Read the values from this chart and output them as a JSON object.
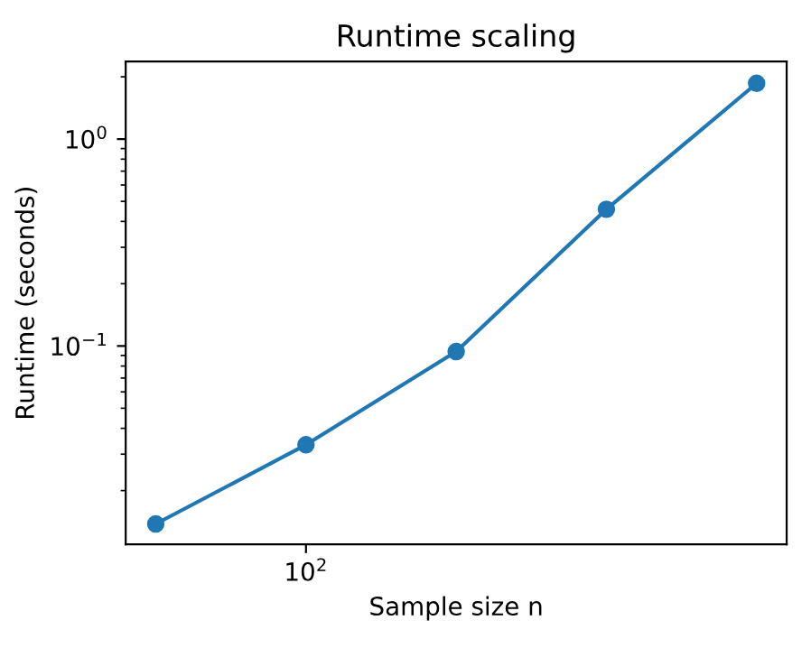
{
  "chart_data": {
    "type": "line",
    "title": "Runtime scaling",
    "xlabel": "Sample size n",
    "ylabel": "Runtime (seconds)",
    "categories": [
      null,
      "10$^{2}$",
      null,
      null,
      null
    ],
    "series": [
      {
        "color": "#1f77b4",
        "values": [
          0.0138,
          0.0333,
          0.094,
          0.458,
          1.86
        ]
      }
    ],
    "log": "y",
    "marker": "circle",
    "line_style": "solid",
    "grid": false,
    "legend": false,
    "ylim": [
      0.011,
      2.37
    ],
    "yticks": [
      {
        "value": 0.1,
        "label": "10$^{−1}$"
      },
      {
        "value": 1,
        "label": "10$^{0}$"
      }
    ]
  }
}
